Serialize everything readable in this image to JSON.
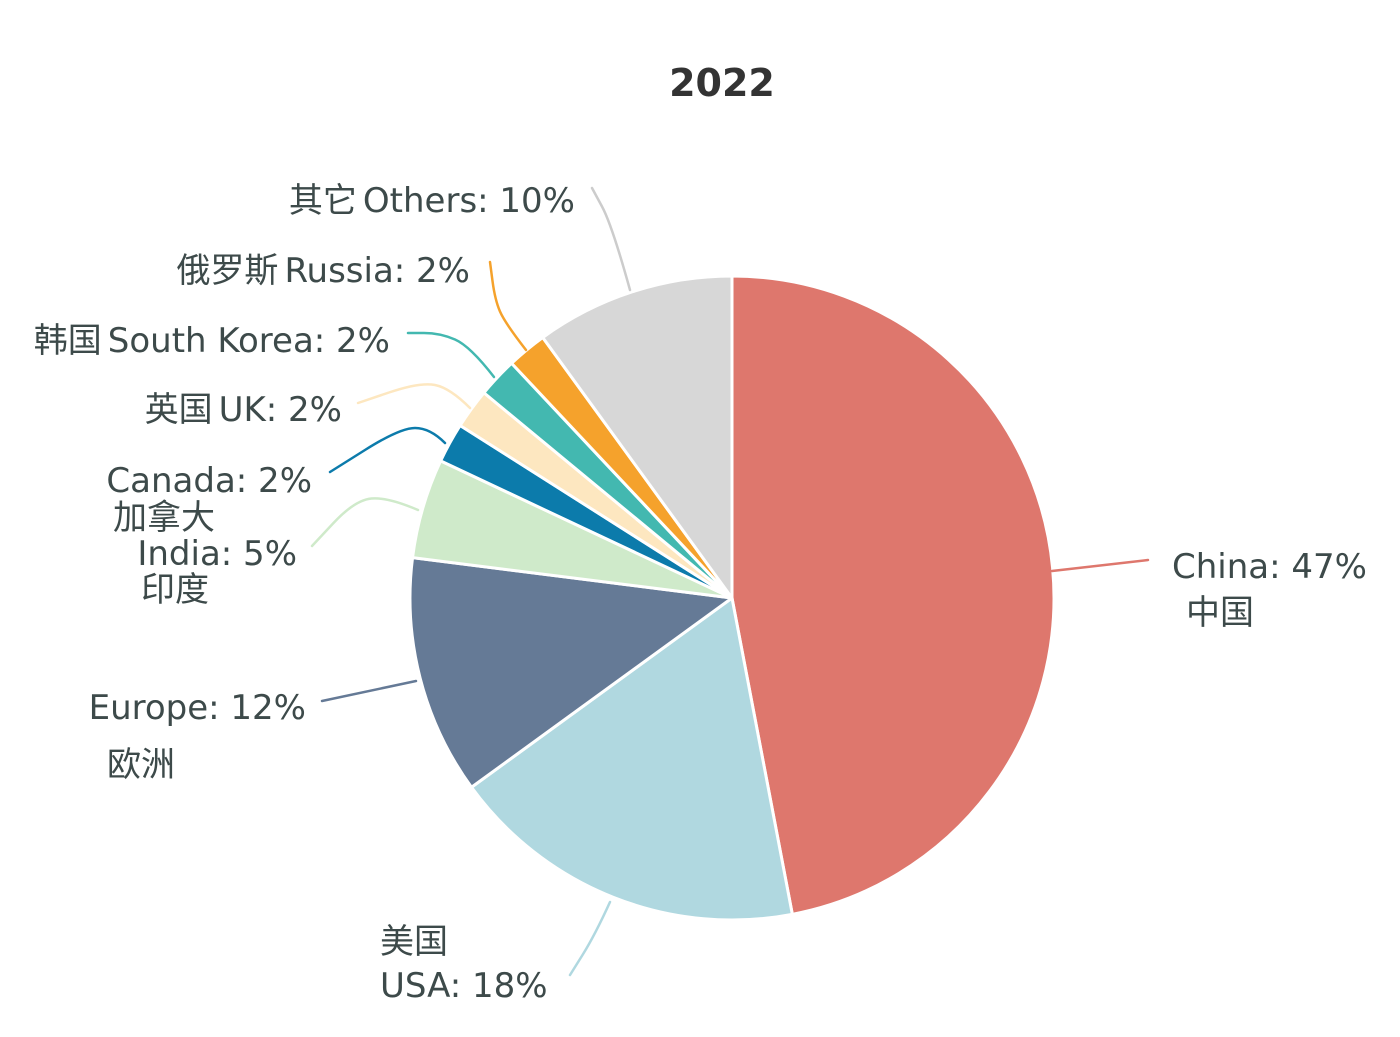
{
  "chart_data": {
    "type": "pie",
    "title": "2022",
    "slices": [
      {
        "label": "China: 47%",
        "sublabel": "中国",
        "value": 47,
        "color": "#de776d"
      },
      {
        "label": "USA: 18%",
        "sublabel": "美国",
        "value": 18,
        "color": "#b0d8e0"
      },
      {
        "label": "Europe: 12%",
        "sublabel": "欧洲",
        "value": 12,
        "color": "#657a96"
      },
      {
        "label": "India: 5%",
        "sublabel": "印度",
        "value": 5,
        "color": "#cfeaca"
      },
      {
        "label": "Canada: 2%",
        "sublabel": "加拿大",
        "value": 2,
        "color": "#0c7bab"
      },
      {
        "label": "UK: 2%",
        "sublabel": "英国",
        "value": 2,
        "color": "#fde7c0"
      },
      {
        "label": "South Korea: 2%",
        "sublabel": "韩国",
        "value": 2,
        "color": "#43b8b0"
      },
      {
        "label": "Russia: 2%",
        "sublabel": "俄罗斯",
        "value": 2,
        "color": "#f5a22c"
      },
      {
        "label": "Others: 10%",
        "sublabel": "其它",
        "value": 10,
        "color": "#d7d7d7"
      }
    ]
  }
}
